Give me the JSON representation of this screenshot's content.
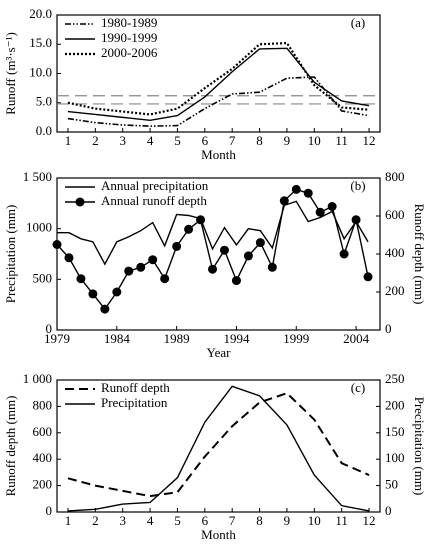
{
  "chart_data": [
    {
      "type": "line",
      "panel_label": "(a)",
      "x_label": "Month",
      "y_label": "Runoff (m³·s⁻¹)",
      "x": [
        1,
        2,
        3,
        4,
        5,
        6,
        7,
        8,
        9,
        10,
        11,
        12
      ],
      "xlim": [
        0.6,
        12.4
      ],
      "xticks": [
        1,
        2,
        3,
        4,
        5,
        6,
        7,
        8,
        9,
        10,
        11,
        12
      ],
      "ylim": [
        0,
        20
      ],
      "yticks": [
        {
          "value": 0,
          "label": "0.0"
        },
        {
          "value": 5,
          "label": "5.0"
        },
        {
          "value": 10,
          "label": "10.0"
        },
        {
          "value": 15,
          "label": "15.0"
        },
        {
          "value": 20,
          "label": "20.0"
        }
      ],
      "reference_lines": [
        6.2,
        4.8
      ],
      "reference_color": "#888888",
      "series": [
        {
          "name": "1980-1989",
          "color": "#000000",
          "line_style": "dash-dot-dot",
          "values": [
            2.3,
            1.6,
            1.2,
            1.0,
            1.1,
            4.0,
            6.5,
            6.8,
            9.2,
            9.4,
            3.6,
            2.8
          ]
        },
        {
          "name": "1990-1999",
          "color": "#000000",
          "line_style": "solid",
          "values": [
            3.5,
            3.0,
            2.5,
            2.0,
            2.8,
            6.0,
            10.3,
            14.2,
            14.3,
            8.5,
            5.3,
            4.5
          ]
        },
        {
          "name": "2000-2006",
          "color": "#000000",
          "line_style": "dotted",
          "values": [
            5.0,
            4.0,
            3.5,
            3.0,
            4.0,
            7.5,
            10.8,
            15.0,
            15.2,
            8.0,
            4.2,
            3.8
          ]
        }
      ]
    },
    {
      "type": "line",
      "panel_label": "(b)",
      "x_label": "Year",
      "y_label": "Precipitation (mm)",
      "y2_label": "Runoff depth (mm)",
      "x": [
        1979,
        1980,
        1981,
        1982,
        1983,
        1984,
        1985,
        1986,
        1987,
        1988,
        1989,
        1990,
        1991,
        1992,
        1993,
        1994,
        1995,
        1996,
        1997,
        1998,
        1999,
        2000,
        2001,
        2002,
        2003,
        2004,
        2005
      ],
      "xlim": [
        1979,
        2006
      ],
      "xticks": [
        1979,
        1984,
        1989,
        1994,
        1999,
        2004
      ],
      "ylim": [
        0,
        1500
      ],
      "yticks": [
        0,
        500,
        1000,
        {
          "value": 1500,
          "label": "1 500"
        }
      ],
      "y2lim": [
        0,
        800
      ],
      "y2ticks": [
        0,
        200,
        400,
        600,
        800
      ],
      "series": [
        {
          "name": "Annual precipitation",
          "color": "#000000",
          "line_style": "solid",
          "values": [
            960,
            960,
            900,
            870,
            650,
            870,
            920,
            980,
            1060,
            830,
            1140,
            1130,
            1100,
            800,
            1010,
            840,
            1000,
            980,
            810,
            1230,
            1270,
            1070,
            1110,
            1170,
            900,
            1070,
            870
          ]
        },
        {
          "name": "Annual runoff depth",
          "color": "#000000",
          "line_style": "solid",
          "marker": "circle",
          "axis": "y2",
          "values": [
            450,
            380,
            270,
            190,
            110,
            200,
            310,
            330,
            370,
            270,
            440,
            530,
            580,
            320,
            420,
            260,
            390,
            460,
            330,
            680,
            740,
            720,
            620,
            650,
            400,
            580,
            280
          ]
        }
      ]
    },
    {
      "type": "line",
      "panel_label": "(c)",
      "x_label": "Month",
      "y_label": "Runoff depth (mm)",
      "y2_label": "Precipitation (mm)",
      "x": [
        1,
        2,
        3,
        4,
        5,
        6,
        7,
        8,
        9,
        10,
        11,
        12
      ],
      "xlim": [
        0.6,
        12.4
      ],
      "xticks": [
        1,
        2,
        3,
        4,
        5,
        6,
        7,
        8,
        9,
        10,
        11,
        12
      ],
      "ylim": [
        0,
        1000
      ],
      "yticks": [
        0,
        200,
        400,
        600,
        800,
        {
          "value": 1000,
          "label": "1 000"
        }
      ],
      "y2lim": [
        0,
        250
      ],
      "y2ticks": [
        0,
        50,
        100,
        150,
        200,
        250
      ],
      "series": [
        {
          "name": "Runoff depth",
          "color": "#000000",
          "line_style": "dashed",
          "values": [
            255,
            200,
            160,
            120,
            150,
            420,
            650,
            830,
            900,
            700,
            370,
            280
          ]
        },
        {
          "name": "Precipitation",
          "color": "#000000",
          "line_style": "solid",
          "axis": "y2",
          "values": [
            2,
            5,
            15,
            18,
            65,
            170,
            238,
            220,
            165,
            70,
            12,
            2
          ]
        }
      ]
    }
  ]
}
